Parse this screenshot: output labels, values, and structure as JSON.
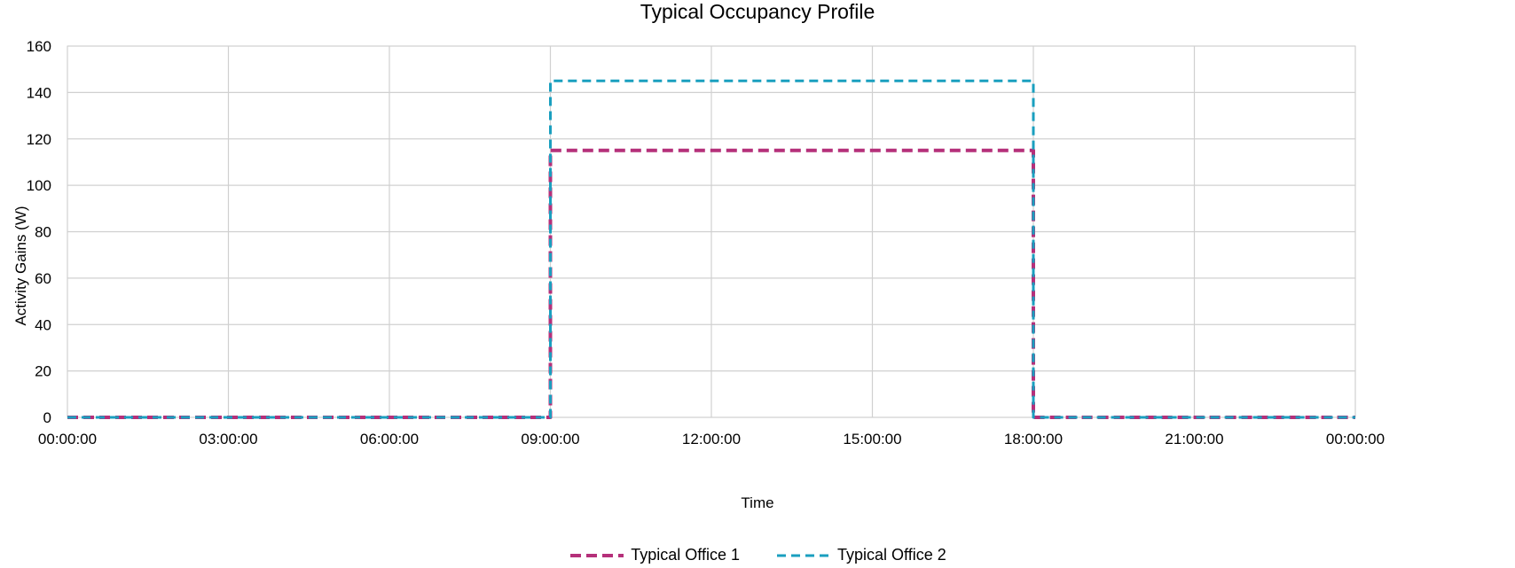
{
  "chart_data": {
    "type": "line",
    "title": "Typical Occupancy Profile",
    "xlabel": "Time",
    "ylabel": "Activity Gains (W)",
    "x_ticks": [
      "00:00:00",
      "03:00:00",
      "06:00:00",
      "09:00:00",
      "12:00:00",
      "15:00:00",
      "18:00:00",
      "21:00:00",
      "00:00:00"
    ],
    "y_ticks": [
      "0",
      "20",
      "40",
      "60",
      "80",
      "100",
      "120",
      "140",
      "160"
    ],
    "xlim": [
      "00:00:00",
      "24:00:00"
    ],
    "ylim": [
      0,
      160
    ],
    "grid": true,
    "legend_position": "bottom",
    "series": [
      {
        "name": "Typical Office 1",
        "color": "#b5307a",
        "style": "dashed",
        "x": [
          "00:00:00",
          "09:00:00",
          "09:00:00",
          "18:00:00",
          "18:00:00",
          "24:00:00"
        ],
        "values": [
          0,
          0,
          115,
          115,
          0,
          0
        ]
      },
      {
        "name": "Typical Office 2",
        "color": "#1a9fbf",
        "style": "dashed",
        "x": [
          "00:00:00",
          "09:00:00",
          "09:00:00",
          "18:00:00",
          "18:00:00",
          "24:00:00"
        ],
        "values": [
          0,
          0,
          145,
          145,
          0,
          0
        ]
      }
    ]
  }
}
